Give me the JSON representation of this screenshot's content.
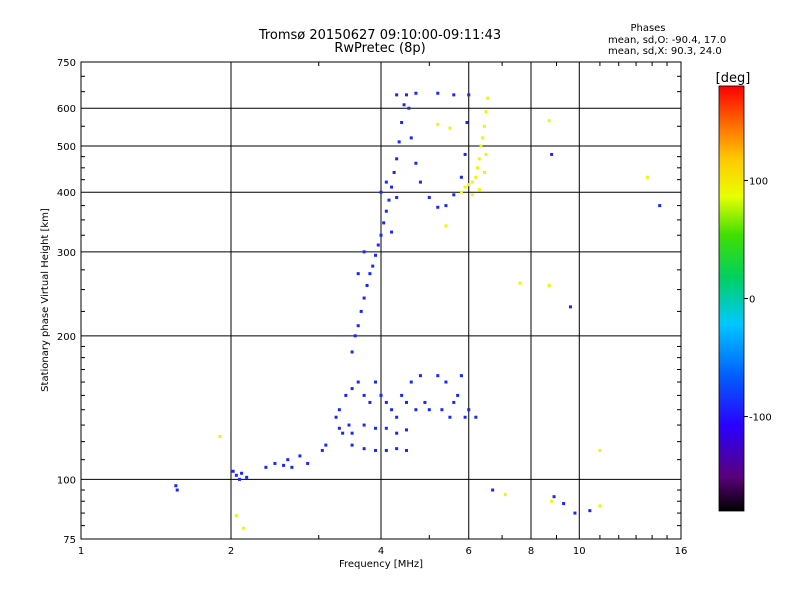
{
  "chart_data": {
    "type": "scatter",
    "title": "Tromsø 20150627 09:10:00-09:11:43",
    "subtitle": "RwPretec (8p)",
    "xlabel": "Frequency [MHz]",
    "ylabel": "Stationary phase Virtual Height [km]",
    "x_scale": "log",
    "y_scale": "log",
    "xlim": [
      1,
      16
    ],
    "ylim": [
      75,
      750
    ],
    "x_ticks": [
      1,
      2,
      4,
      6,
      8,
      10,
      16
    ],
    "x_tick_labels": [
      "1",
      "2",
      "4",
      "6",
      "8",
      "10",
      "16"
    ],
    "y_ticks": [
      75,
      100,
      200,
      300,
      400,
      500,
      600,
      750
    ],
    "y_tick_labels": [
      "75",
      "100",
      "200",
      "300",
      "400",
      "500",
      "600",
      "750"
    ],
    "grid": true,
    "legend": {
      "title": "Phases",
      "lines": [
        "mean, sd,O: -90.4, 17.0",
        "mean, sd,X:  90.3, 24.0"
      ],
      "placement": "top-right"
    },
    "colorbar": {
      "label": "[deg]",
      "min": -180,
      "max": 180,
      "ticks": [
        100,
        0,
        -100
      ],
      "tick_labels": [
        "100",
        "0",
        "-100"
      ],
      "colormap": "rainbow (black-violet-blue-cyan-green-yellow-orange-red)"
    },
    "series": [
      {
        "mode": "O",
        "phase_mean": -90.4,
        "points": [
          [
            1.55,
            97
          ],
          [
            1.56,
            95
          ],
          [
            2.02,
            104
          ],
          [
            2.05,
            102
          ],
          [
            2.08,
            100
          ],
          [
            2.1,
            103
          ],
          [
            2.15,
            101
          ],
          [
            2.35,
            106
          ],
          [
            2.45,
            108
          ],
          [
            2.55,
            107
          ],
          [
            2.6,
            110
          ],
          [
            2.65,
            106
          ],
          [
            2.75,
            112
          ],
          [
            2.85,
            108
          ],
          [
            3.05,
            115
          ],
          [
            3.1,
            118
          ],
          [
            3.25,
            135
          ],
          [
            3.3,
            140
          ],
          [
            3.35,
            125
          ],
          [
            3.4,
            150
          ],
          [
            3.45,
            130
          ],
          [
            3.5,
            155
          ],
          [
            3.6,
            160
          ],
          [
            3.7,
            150
          ],
          [
            3.8,
            145
          ],
          [
            3.9,
            160
          ],
          [
            4.0,
            150
          ],
          [
            4.1,
            145
          ],
          [
            4.2,
            140
          ],
          [
            4.3,
            135
          ],
          [
            4.4,
            150
          ],
          [
            4.5,
            145
          ],
          [
            4.6,
            160
          ],
          [
            4.7,
            140
          ],
          [
            4.8,
            165
          ],
          [
            4.9,
            145
          ],
          [
            5.0,
            140
          ],
          [
            5.2,
            165
          ],
          [
            5.3,
            140
          ],
          [
            5.4,
            160
          ],
          [
            5.5,
            135
          ],
          [
            5.6,
            145
          ],
          [
            5.7,
            150
          ],
          [
            5.8,
            165
          ],
          [
            5.9,
            135
          ],
          [
            6.0,
            140
          ],
          [
            6.2,
            135
          ],
          [
            3.3,
            128
          ],
          [
            3.5,
            125
          ],
          [
            3.7,
            130
          ],
          [
            3.9,
            128
          ],
          [
            4.1,
            128
          ],
          [
            4.3,
            125
          ],
          [
            4.5,
            127
          ],
          [
            3.5,
            118
          ],
          [
            3.7,
            116
          ],
          [
            3.9,
            115
          ],
          [
            4.1,
            115
          ],
          [
            4.3,
            116
          ],
          [
            4.5,
            115
          ],
          [
            3.5,
            185
          ],
          [
            3.55,
            200
          ],
          [
            3.6,
            210
          ],
          [
            3.65,
            225
          ],
          [
            3.7,
            240
          ],
          [
            3.75,
            255
          ],
          [
            3.8,
            270
          ],
          [
            3.85,
            280
          ],
          [
            3.9,
            295
          ],
          [
            3.95,
            310
          ],
          [
            4.0,
            325
          ],
          [
            4.05,
            345
          ],
          [
            4.1,
            365
          ],
          [
            4.15,
            385
          ],
          [
            4.2,
            410
          ],
          [
            4.25,
            440
          ],
          [
            4.3,
            470
          ],
          [
            4.35,
            510
          ],
          [
            4.4,
            560
          ],
          [
            4.45,
            610
          ],
          [
            4.5,
            640
          ],
          [
            4.55,
            600
          ],
          [
            4.6,
            520
          ],
          [
            4.7,
            460
          ],
          [
            4.8,
            420
          ],
          [
            5.0,
            390
          ],
          [
            5.2,
            372
          ],
          [
            5.4,
            375
          ],
          [
            5.6,
            395
          ],
          [
            5.8,
            430
          ],
          [
            5.9,
            480
          ],
          [
            5.95,
            560
          ],
          [
            6.0,
            640
          ],
          [
            4.3,
            640
          ],
          [
            4.7,
            645
          ],
          [
            5.2,
            645
          ],
          [
            5.6,
            640
          ],
          [
            3.6,
            270
          ],
          [
            3.7,
            300
          ],
          [
            4.0,
            400
          ],
          [
            4.3,
            390
          ],
          [
            4.1,
            420
          ],
          [
            4.2,
            330
          ],
          [
            6.7,
            95
          ],
          [
            8.9,
            92
          ],
          [
            9.3,
            89
          ],
          [
            10.5,
            86
          ],
          [
            9.8,
            85
          ],
          [
            14.5,
            375
          ],
          [
            8.8,
            480
          ],
          [
            9.6,
            230
          ]
        ]
      },
      {
        "mode": "X",
        "phase_mean": 90.3,
        "points": [
          [
            5.8,
            400
          ],
          [
            5.9,
            410
          ],
          [
            6.0,
            415
          ],
          [
            6.1,
            420
          ],
          [
            6.2,
            430
          ],
          [
            6.25,
            450
          ],
          [
            6.3,
            470
          ],
          [
            6.35,
            500
          ],
          [
            6.4,
            520
          ],
          [
            6.45,
            550
          ],
          [
            6.5,
            590
          ],
          [
            6.55,
            630
          ],
          [
            6.5,
            480
          ],
          [
            6.45,
            440
          ],
          [
            6.1,
            395
          ],
          [
            6.3,
            405
          ],
          [
            5.2,
            555
          ],
          [
            5.5,
            545
          ],
          [
            5.4,
            340
          ],
          [
            7.1,
            93
          ],
          [
            8.7,
            565
          ],
          [
            8.8,
            90
          ],
          [
            8.7,
            255
          ],
          [
            11.0,
            88
          ],
          [
            11.0,
            115
          ],
          [
            13.7,
            430
          ],
          [
            7.6,
            258
          ],
          [
            1.9,
            123
          ],
          [
            2.05,
            84
          ],
          [
            2.12,
            79
          ]
        ]
      }
    ]
  }
}
